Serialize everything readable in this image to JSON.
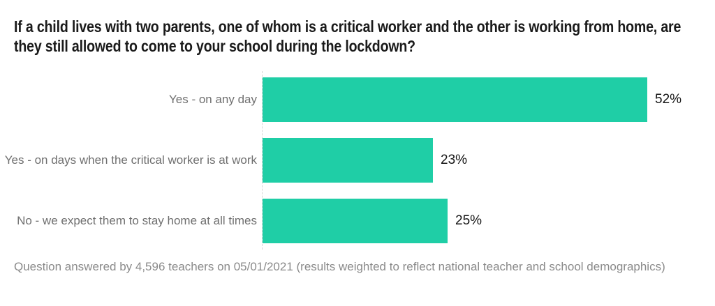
{
  "title": "If a child lives with two parents, one of whom is a critical worker and the other is working from home, are they still allowed to come to your school during the lockdown?",
  "footnote": "Question answered by 4,596 teachers on 05/01/2021 (results weighted to reflect national teacher and school demographics)",
  "chart_data": {
    "type": "bar",
    "orientation": "horizontal",
    "title": "If a child lives with two parents, one of whom is a critical worker and the other is working from home, are they still allowed to come to your school during the lockdown?",
    "categories": [
      "Yes - on any day",
      "Yes - on days when the critical worker is at work",
      "No - we expect them to stay home at all times"
    ],
    "values": [
      52,
      23,
      25
    ],
    "value_labels": [
      "52%",
      "23%",
      "25%"
    ],
    "xlabel": "",
    "ylabel": "",
    "xlim": [
      0,
      55
    ],
    "grid": false,
    "legend": false,
    "bar_color": "#1FCEA6",
    "axis_line_style": "dashed",
    "label_color": "#6f6f6f",
    "value_label_color": "#141414"
  }
}
